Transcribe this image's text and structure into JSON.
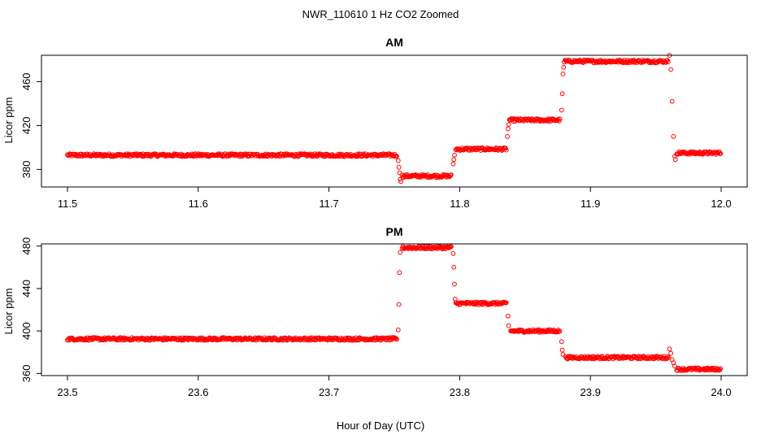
{
  "figure": {
    "title": "NWR_110610  1 Hz CO2 Zoomed",
    "xlabel": "Hour of Day (UTC)"
  },
  "chart_data": [
    {
      "type": "scatter",
      "title": "AM",
      "ylabel": "Licor ppm",
      "xlim": [
        11.5,
        12.0
      ],
      "ylim": [
        364,
        484
      ],
      "xticks": [
        11.5,
        11.6,
        11.7,
        11.8,
        11.9,
        12.0
      ],
      "xtick_labels": [
        "11.5",
        "11.6",
        "11.7",
        "11.8",
        "11.9",
        "12.0"
      ],
      "yticks": [
        380,
        420,
        460
      ],
      "ytick_labels": [
        "380",
        "420",
        "460"
      ],
      "grid": false,
      "legend": "none",
      "marker": "open-circle",
      "color": "#ff0000",
      "plateaus": [
        {
          "x_start": 11.5,
          "x_end": 11.752,
          "y": 393.0
        },
        {
          "x_start": 11.756,
          "x_end": 11.794,
          "y": 374.0
        },
        {
          "x_start": 11.797,
          "x_end": 11.836,
          "y": 398.5
        },
        {
          "x_start": 11.838,
          "x_end": 11.877,
          "y": 425.0
        },
        {
          "x_start": 11.88,
          "x_end": 11.96,
          "y": 478.5
        },
        {
          "x_start": 11.966,
          "x_end": 12.0,
          "y": 395.0
        }
      ],
      "transitions": [
        [
          11.753,
          388
        ],
        [
          11.7535,
          382
        ],
        [
          11.754,
          377
        ],
        [
          11.7545,
          371
        ],
        [
          11.755,
          369
        ],
        [
          11.795,
          385
        ],
        [
          11.7955,
          389
        ],
        [
          11.796,
          393
        ],
        [
          11.8365,
          410
        ],
        [
          11.837,
          417
        ],
        [
          11.8375,
          421
        ],
        [
          11.878,
          434
        ],
        [
          11.8785,
          449
        ],
        [
          11.879,
          467
        ],
        [
          11.8795,
          473
        ],
        [
          11.9605,
          484
        ],
        [
          11.9615,
          471
        ],
        [
          11.9625,
          442
        ],
        [
          11.9635,
          410
        ],
        [
          11.9645,
          392
        ],
        [
          11.965,
          389
        ]
      ]
    },
    {
      "type": "scatter",
      "title": "PM",
      "ylabel": "Licor ppm",
      "xlim": [
        23.5,
        24.0
      ],
      "ylim": [
        358,
        482
      ],
      "xticks": [
        23.5,
        23.6,
        23.7,
        23.8,
        23.9,
        24.0
      ],
      "xtick_labels": [
        "23.5",
        "23.6",
        "23.7",
        "23.8",
        "23.9",
        "24.0"
      ],
      "yticks": [
        360,
        400,
        440,
        480
      ],
      "ytick_labels": [
        "360",
        "400",
        "440",
        "480"
      ],
      "grid": false,
      "legend": "none",
      "marker": "open-circle",
      "color": "#ff0000",
      "plateaus": [
        {
          "x_start": 23.5,
          "x_end": 23.752,
          "y": 392.5
        },
        {
          "x_start": 23.756,
          "x_end": 23.794,
          "y": 478.5
        },
        {
          "x_start": 23.797,
          "x_end": 23.836,
          "y": 426.0
        },
        {
          "x_start": 23.839,
          "x_end": 23.877,
          "y": 400.0
        },
        {
          "x_start": 23.881,
          "x_end": 23.96,
          "y": 375.0
        },
        {
          "x_start": 23.966,
          "x_end": 24.0,
          "y": 364.0
        }
      ],
      "transitions": [
        [
          23.753,
          401
        ],
        [
          23.7535,
          425
        ],
        [
          23.754,
          455
        ],
        [
          23.7545,
          474
        ],
        [
          23.795,
          473
        ],
        [
          23.7955,
          460
        ],
        [
          23.796,
          444
        ],
        [
          23.7965,
          430
        ],
        [
          23.837,
          414
        ],
        [
          23.8375,
          405
        ],
        [
          23.878,
          390
        ],
        [
          23.8785,
          382
        ],
        [
          23.879,
          378
        ],
        [
          23.9605,
          383
        ],
        [
          23.9615,
          379
        ],
        [
          23.9625,
          373
        ],
        [
          23.9635,
          370
        ],
        [
          23.9645,
          367
        ]
      ]
    }
  ]
}
